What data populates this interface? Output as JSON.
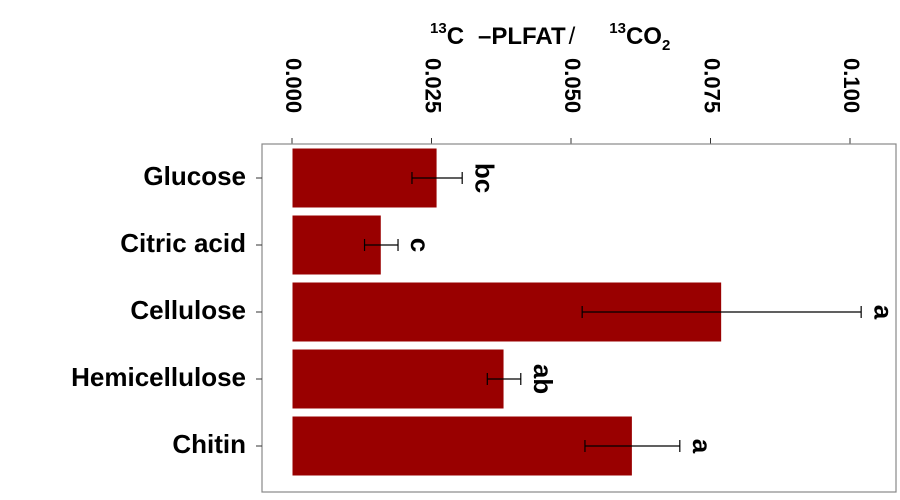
{
  "chart_data": {
    "type": "bar",
    "orientation": "horizontal",
    "title": {
      "iso1": "13",
      "elem1": "C",
      "dash": "–",
      "name": "PLFAT",
      "slash": "/",
      "iso2": "13",
      "elem2": "CO",
      "sub": "2"
    },
    "categories": [
      "Glucose",
      "Citric acid",
      "Cellulose",
      "Hemicellulose",
      "Chitin"
    ],
    "values": [
      0.026,
      0.016,
      0.077,
      0.038,
      0.061
    ],
    "errors": [
      0.0045,
      0.003,
      0.025,
      0.003,
      0.0085
    ],
    "significance": [
      "bc",
      "c",
      "a",
      "ab",
      "a"
    ],
    "xlim": [
      0,
      0.1
    ],
    "ticks": [
      "0.000",
      "0.025",
      "0.050",
      "0.075",
      "0.100"
    ],
    "tick_values": [
      0,
      0.025,
      0.05,
      0.075,
      0.1
    ],
    "axis_position": "top",
    "tick_label_rotation": "90 degrees clockwise",
    "grid": false,
    "colors": {
      "bar": "#990000",
      "bar_edge": "#ffffff",
      "frame": "#888888"
    }
  }
}
